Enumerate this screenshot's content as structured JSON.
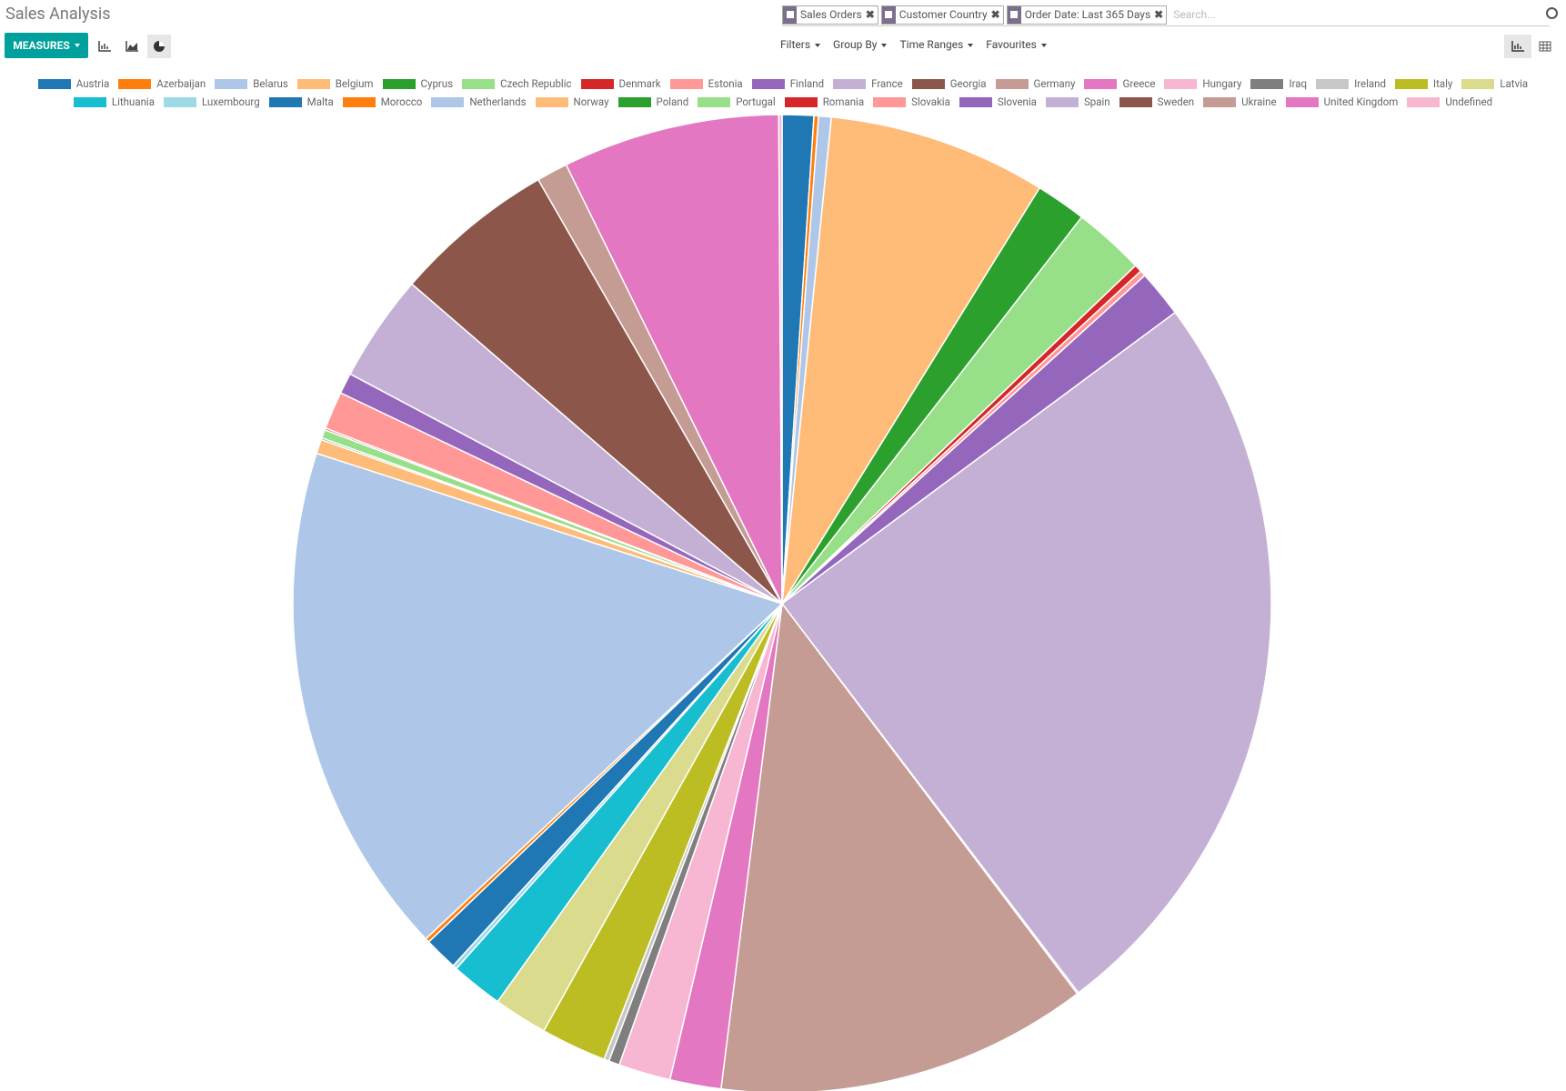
{
  "header": {
    "title": "Sales Analysis",
    "facets": [
      "Sales Orders",
      "Customer Country",
      "Order Date: Last 365 Days"
    ],
    "search_placeholder": "Search...",
    "measures": "MEASURES",
    "menus": [
      "Filters",
      "Group By",
      "Time Ranges",
      "Favourites"
    ]
  },
  "chart_data": {
    "type": "pie",
    "categories": [
      "Austria",
      "Azerbaijan",
      "Belarus",
      "Belgium",
      "Cyprus",
      "Czech Republic",
      "Denmark",
      "Estonia",
      "Finland",
      "France",
      "Georgia",
      "Germany",
      "Greece",
      "Hungary",
      "Iraq",
      "Ireland",
      "Italy",
      "Latvia",
      "Lithuania",
      "Luxembourg",
      "Malta",
      "Morocco",
      "Netherlands",
      "Norway",
      "Poland",
      "Portugal",
      "Romania",
      "Slovakia",
      "Slovenia",
      "Spain",
      "Sweden",
      "Ukraine",
      "United Kingdom",
      "Undefined"
    ],
    "values": [
      1.04,
      0.15,
      0.42,
      7.22,
      1.67,
      2.36,
      0.25,
      0.19,
      1.56,
      24.81,
      0.05,
      12.31,
      1.69,
      1.72,
      0.36,
      0.17,
      2.17,
      1.78,
      1.72,
      0.14,
      1.11,
      0.14,
      17.0,
      0.47,
      0.06,
      0.28,
      0.06,
      1.25,
      0.69,
      3.56,
      5.36,
      1.03,
      7.17,
      0.11
    ],
    "colors": [
      "#1f77b4",
      "#ff7f0e",
      "#aec7e8",
      "#ffbb78",
      "#2ca02c",
      "#98df8a",
      "#d62728",
      "#ff9896",
      "#9467bd",
      "#c5b0d5",
      "#8c564b",
      "#c49c94",
      "#e377c2",
      "#f7b6d2",
      "#7f7f7f",
      "#c7c7c7",
      "#bcbd22",
      "#dbdb8d",
      "#17becf",
      "#9edae5",
      "#1f77b4",
      "#ff7f0e",
      "#aec7e8",
      "#ffbb78",
      "#2ca02c",
      "#98df8a",
      "#d62728",
      "#ff9896",
      "#9467bd",
      "#c5b0d5",
      "#8c564b",
      "#c49c94",
      "#e377c2",
      "#f7b6d2"
    ],
    "legend": "top"
  }
}
